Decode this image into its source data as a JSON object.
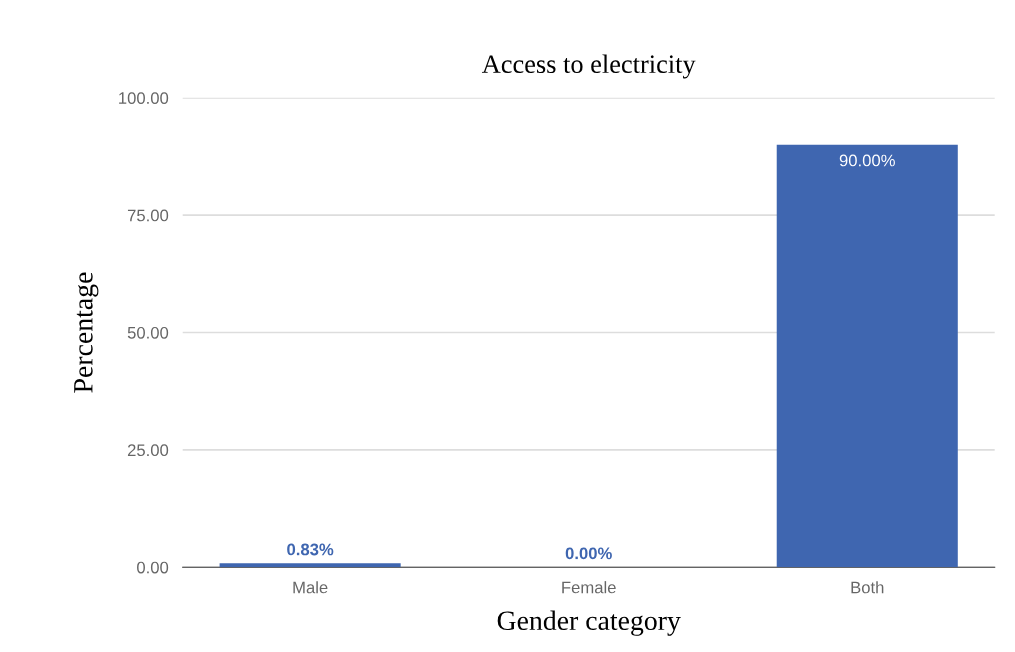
{
  "chart_data": {
    "type": "bar",
    "title": "Access to electricity",
    "xlabel": "Gender category",
    "ylabel": "Percentage",
    "categories": [
      "Male",
      "Female",
      "Both"
    ],
    "values": [
      0.83,
      0,
      90
    ],
    "value_labels": [
      "0.83%",
      "0.00%",
      "90.00%"
    ],
    "color": "#3f66b0",
    "ylim": [
      0,
      100
    ],
    "yticks": [
      {
        "value": 0,
        "label": "0.00"
      },
      {
        "value": 25,
        "label": "25.00"
      },
      {
        "value": 50,
        "label": "50.00"
      },
      {
        "value": 75,
        "label": "75.00"
      },
      {
        "value": 100,
        "label": "100.00"
      }
    ],
    "grid": "y"
  }
}
